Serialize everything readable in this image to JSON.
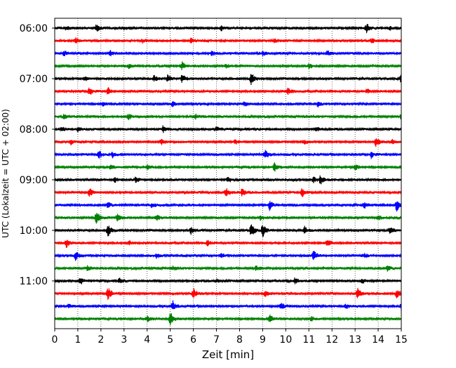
{
  "chart_data": {
    "type": "line",
    "subtype": "helicorder",
    "xlabel": "Zeit  [min]",
    "ylabel": "UTC (Lokalzeit = UTC + 02:00)",
    "xlim": [
      0,
      15
    ],
    "x_ticks": [
      "0",
      "1",
      "2",
      "3",
      "4",
      "5",
      "6",
      "7",
      "8",
      "9",
      "10",
      "11",
      "12",
      "13",
      "14",
      "15"
    ],
    "y_ticks": [
      "06:00",
      "07:00",
      "08:00",
      "09:00",
      "10:00",
      "11:00"
    ],
    "grid": "vertical dotted at every minute",
    "legend": "none",
    "colors": [
      "#000000",
      "#ff0000",
      "#0000ff",
      "#008000"
    ],
    "traces": [
      {
        "start": "06:00",
        "color": "#000000",
        "events": [
          [
            0.5,
            1.0
          ],
          [
            1.8,
            1.5
          ],
          [
            3.0,
            0.8
          ],
          [
            7.2,
            1.2
          ],
          [
            13.5,
            2.0
          ],
          [
            14.5,
            0.8
          ]
        ]
      },
      {
        "start": "06:15",
        "color": "#ff0000",
        "events": [
          [
            0.9,
            1.3
          ],
          [
            3.8,
            1.0
          ],
          [
            5.9,
            1.0
          ],
          [
            9.5,
            1.1
          ],
          [
            13.7,
            1.1
          ]
        ]
      },
      {
        "start": "06:30",
        "color": "#0000ff",
        "events": [
          [
            0.4,
            1.0
          ],
          [
            2.4,
            1.1
          ],
          [
            6.8,
            1.0
          ],
          [
            9.0,
            1.0
          ],
          [
            11.8,
            1.2
          ]
        ]
      },
      {
        "start": "06:45",
        "color": "#008000",
        "events": [
          [
            3.2,
            1.0
          ],
          [
            5.5,
            2.0
          ],
          [
            7.4,
            1.0
          ],
          [
            11.0,
            1.1
          ]
        ]
      },
      {
        "start": "07:00",
        "color": "#000000",
        "events": [
          [
            1.3,
            1.0
          ],
          [
            4.3,
            1.4
          ],
          [
            4.9,
            1.8
          ],
          [
            5.5,
            1.9
          ],
          [
            8.5,
            2.4
          ],
          [
            15.0,
            2.2
          ]
        ]
      },
      {
        "start": "07:15",
        "color": "#ff0000",
        "events": [
          [
            1.5,
            1.8
          ],
          [
            2.3,
            1.6
          ],
          [
            10.1,
            1.6
          ],
          [
            13.5,
            1.2
          ]
        ]
      },
      {
        "start": "07:30",
        "color": "#0000ff",
        "events": [
          [
            2.1,
            1.0
          ],
          [
            5.1,
            1.1
          ],
          [
            8.2,
            1.0
          ],
          [
            11.4,
            1.1
          ]
        ]
      },
      {
        "start": "07:45",
        "color": "#008000",
        "events": [
          [
            0.4,
            1.0
          ],
          [
            3.2,
            1.2
          ],
          [
            6.1,
            1.0
          ],
          [
            15.0,
            1.4
          ]
        ]
      },
      {
        "start": "08:00",
        "color": "#000000",
        "events": [
          [
            0.3,
            1.0
          ],
          [
            1.0,
            1.2
          ],
          [
            4.7,
            1.6
          ],
          [
            7.0,
            1.1
          ],
          [
            11.3,
            1.2
          ]
        ]
      },
      {
        "start": "08:15",
        "color": "#ff0000",
        "events": [
          [
            0.7,
            1.1
          ],
          [
            4.6,
            1.3
          ],
          [
            7.8,
            1.0
          ],
          [
            10.8,
            1.0
          ],
          [
            13.9,
            2.0
          ],
          [
            14.6,
            1.0
          ]
        ]
      },
      {
        "start": "08:30",
        "color": "#0000ff",
        "events": [
          [
            1.9,
            1.8
          ],
          [
            2.5,
            1.2
          ],
          [
            9.1,
            2.0
          ],
          [
            13.7,
            1.6
          ]
        ]
      },
      {
        "start": "08:45",
        "color": "#008000",
        "events": [
          [
            2.4,
            1.0
          ],
          [
            4.0,
            1.0
          ],
          [
            9.5,
            2.0
          ],
          [
            13.0,
            1.2
          ]
        ]
      },
      {
        "start": "09:00",
        "color": "#000000",
        "events": [
          [
            2.6,
            1.0
          ],
          [
            3.5,
            1.1
          ],
          [
            7.5,
            1.2
          ],
          [
            11.2,
            1.1
          ],
          [
            11.5,
            1.8
          ]
        ]
      },
      {
        "start": "09:15",
        "color": "#ff0000",
        "events": [
          [
            1.5,
            2.2
          ],
          [
            7.4,
            2.0
          ],
          [
            8.1,
            1.5
          ],
          [
            10.7,
            1.9
          ]
        ]
      },
      {
        "start": "09:30",
        "color": "#0000ff",
        "events": [
          [
            2.3,
            1.2
          ],
          [
            4.2,
            1.0
          ],
          [
            9.3,
            2.0
          ],
          [
            13.4,
            1.3
          ],
          [
            14.8,
            3.0
          ]
        ]
      },
      {
        "start": "09:45",
        "color": "#008000",
        "events": [
          [
            1.8,
            3.0
          ],
          [
            2.7,
            1.6
          ],
          [
            4.4,
            1.5
          ],
          [
            8.9,
            1.0
          ],
          [
            14.0,
            1.0
          ]
        ]
      },
      {
        "start": "10:00",
        "color": "#000000",
        "events": [
          [
            2.3,
            3.0
          ],
          [
            5.9,
            1.5
          ],
          [
            8.5,
            3.0
          ],
          [
            9.0,
            3.0
          ],
          [
            10.8,
            1.8
          ],
          [
            14.5,
            1.6
          ]
        ]
      },
      {
        "start": "10:15",
        "color": "#ff0000",
        "events": [
          [
            0.5,
            2.0
          ],
          [
            3.2,
            1.1
          ],
          [
            6.6,
            1.3
          ],
          [
            11.8,
            1.7
          ]
        ]
      },
      {
        "start": "10:30",
        "color": "#0000ff",
        "events": [
          [
            0.9,
            2.2
          ],
          [
            4.4,
            1.0
          ],
          [
            7.2,
            1.0
          ],
          [
            11.2,
            2.4
          ],
          [
            13.4,
            1.0
          ]
        ]
      },
      {
        "start": "10:45",
        "color": "#008000",
        "events": [
          [
            1.4,
            1.0
          ],
          [
            5.1,
            1.0
          ],
          [
            8.7,
            1.2
          ],
          [
            14.4,
            1.1
          ]
        ]
      },
      {
        "start": "11:00",
        "color": "#000000",
        "events": [
          [
            1.1,
            1.6
          ],
          [
            2.8,
            1.1
          ],
          [
            7.0,
            1.0
          ],
          [
            10.4,
            1.2
          ],
          [
            13.3,
            1.1
          ]
        ]
      },
      {
        "start": "11:15",
        "color": "#ff0000",
        "events": [
          [
            2.3,
            3.0
          ],
          [
            6.0,
            2.4
          ],
          [
            9.1,
            1.3
          ],
          [
            13.1,
            2.4
          ],
          [
            14.8,
            1.8
          ]
        ]
      },
      {
        "start": "11:30",
        "color": "#0000ff",
        "events": [
          [
            0.6,
            1.0
          ],
          [
            5.1,
            2.4
          ],
          [
            9.8,
            1.8
          ],
          [
            12.6,
            1.0
          ],
          [
            15.0,
            1.8
          ]
        ]
      },
      {
        "start": "11:45",
        "color": "#008000",
        "events": [
          [
            4.0,
            1.2
          ],
          [
            5.0,
            3.5
          ],
          [
            9.3,
            2.0
          ],
          [
            11.1,
            1.0
          ]
        ]
      }
    ]
  }
}
